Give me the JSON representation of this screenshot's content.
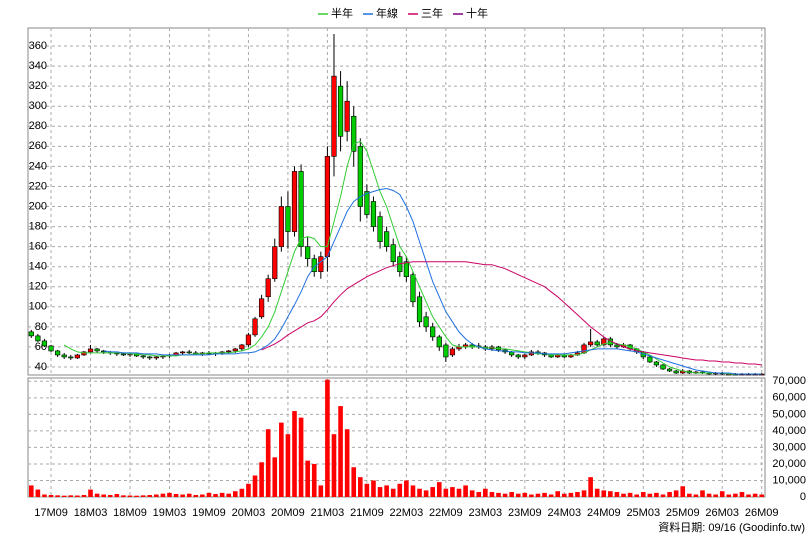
{
  "chart_data": {
    "type": "candlestick",
    "source": "資料日期: 09/16 (Goodinfo.tw)",
    "legend": "top",
    "grid": true,
    "up_color": "#ff0000",
    "down_color": "#00cc00",
    "categories": [
      null,
      null,
      null,
      "17M09",
      null,
      null,
      null,
      null,
      null,
      "18M03",
      null,
      null,
      null,
      null,
      null,
      "18M09",
      null,
      null,
      null,
      null,
      null,
      "19M03",
      null,
      null,
      null,
      null,
      null,
      "19M09",
      null,
      null,
      null,
      null,
      null,
      "20M03",
      null,
      null,
      null,
      null,
      null,
      "20M09",
      null,
      null,
      null,
      null,
      null,
      "21M03",
      null,
      null,
      null,
      null,
      null,
      "21M09",
      null,
      null,
      null,
      null,
      null,
      "22M03",
      null,
      null,
      null,
      null,
      null,
      "22M09",
      null,
      null,
      null,
      null,
      null,
      "23M03",
      null,
      null,
      null,
      null,
      null,
      "23M09",
      null,
      null,
      null,
      null,
      null,
      "24M03",
      null,
      null,
      null,
      null,
      null,
      "24M09",
      null,
      null,
      null,
      null,
      null,
      "25M03",
      null,
      null,
      null,
      null,
      null,
      "25M09",
      null,
      null,
      null,
      null,
      null,
      "26M03",
      null,
      null,
      null,
      null,
      null,
      "26M09"
    ],
    "ohlc": [
      [
        75,
        77,
        69,
        71
      ],
      [
        71,
        73,
        65,
        66
      ],
      [
        66,
        68,
        60,
        61
      ],
      [
        61,
        62,
        55,
        56
      ],
      [
        56,
        57,
        50,
        52
      ],
      [
        52,
        54,
        48,
        50
      ],
      [
        50,
        52,
        47,
        49
      ],
      [
        49,
        53,
        48,
        52
      ],
      [
        52,
        56,
        51,
        55
      ],
      [
        55,
        62,
        54,
        58
      ],
      [
        58,
        59,
        54,
        56
      ],
      [
        56,
        57,
        53,
        55
      ],
      [
        55,
        56,
        52,
        54
      ],
      [
        54,
        55,
        51,
        53
      ],
      [
        53,
        54,
        51,
        52
      ],
      [
        52,
        54,
        50,
        53
      ],
      [
        53,
        54,
        50,
        51
      ],
      [
        51,
        52,
        48,
        50
      ],
      [
        50,
        51,
        47,
        49
      ],
      [
        49,
        51,
        47,
        50
      ],
      [
        50,
        52,
        48,
        51
      ],
      [
        51,
        53,
        49,
        52
      ],
      [
        52,
        55,
        51,
        54
      ],
      [
        54,
        56,
        52,
        55
      ],
      [
        55,
        57,
        53,
        54
      ],
      [
        54,
        56,
        52,
        53
      ],
      [
        53,
        55,
        51,
        54
      ],
      [
        54,
        56,
        52,
        53
      ],
      [
        53,
        55,
        51,
        54
      ],
      [
        54,
        56,
        52,
        55
      ],
      [
        55,
        57,
        53,
        56
      ],
      [
        56,
        59,
        54,
        58
      ],
      [
        58,
        63,
        56,
        62
      ],
      [
        62,
        74,
        60,
        72
      ],
      [
        72,
        90,
        70,
        88
      ],
      [
        90,
        112,
        88,
        108
      ],
      [
        110,
        132,
        105,
        128
      ],
      [
        128,
        168,
        125,
        160
      ],
      [
        160,
        210,
        155,
        200
      ],
      [
        200,
        215,
        158,
        175
      ],
      [
        175,
        240,
        170,
        235
      ],
      [
        235,
        242,
        150,
        160
      ],
      [
        160,
        170,
        140,
        148
      ],
      [
        148,
        152,
        130,
        135
      ],
      [
        135,
        155,
        128,
        150
      ],
      [
        150,
        260,
        135,
        250
      ],
      [
        250,
        372,
        230,
        330
      ],
      [
        320,
        335,
        255,
        270
      ],
      [
        275,
        325,
        265,
        305
      ],
      [
        290,
        300,
        240,
        255
      ],
      [
        260,
        268,
        185,
        200
      ],
      [
        215,
        222,
        188,
        192
      ],
      [
        205,
        210,
        175,
        180
      ],
      [
        190,
        195,
        158,
        165
      ],
      [
        175,
        180,
        155,
        160
      ],
      [
        162,
        168,
        140,
        145
      ],
      [
        150,
        155,
        130,
        135
      ],
      [
        145,
        150,
        125,
        130
      ],
      [
        132,
        135,
        100,
        105
      ],
      [
        110,
        115,
        80,
        85
      ],
      [
        90,
        95,
        75,
        80
      ],
      [
        80,
        84,
        66,
        70
      ],
      [
        70,
        72,
        56,
        60
      ],
      [
        62,
        64,
        45,
        50
      ],
      [
        52,
        60,
        50,
        58
      ],
      [
        58,
        63,
        56,
        60
      ],
      [
        60,
        64,
        58,
        62
      ],
      [
        62,
        64,
        58,
        60
      ],
      [
        61,
        64,
        58,
        60
      ],
      [
        60,
        62,
        56,
        58
      ],
      [
        58,
        62,
        56,
        60
      ],
      [
        60,
        61,
        55,
        57
      ],
      [
        57,
        58,
        53,
        55
      ],
      [
        55,
        56,
        50,
        52
      ],
      [
        52,
        53,
        48,
        50
      ],
      [
        50,
        53,
        48,
        52
      ],
      [
        52,
        57,
        51,
        55
      ],
      [
        55,
        57,
        52,
        54
      ],
      [
        54,
        55,
        50,
        52
      ],
      [
        52,
        53,
        49,
        50
      ],
      [
        50,
        53,
        49,
        52
      ],
      [
        52,
        53,
        49,
        50
      ],
      [
        50,
        53,
        49,
        52
      ],
      [
        52,
        56,
        51,
        54
      ],
      [
        54,
        64,
        53,
        62
      ],
      [
        62,
        78,
        60,
        65
      ],
      [
        65,
        67,
        60,
        62
      ],
      [
        62,
        70,
        61,
        68
      ],
      [
        68,
        70,
        60,
        62
      ],
      [
        62,
        64,
        58,
        60
      ],
      [
        60,
        64,
        59,
        62
      ],
      [
        62,
        63,
        56,
        58
      ],
      [
        58,
        59,
        53,
        55
      ],
      [
        55,
        56,
        48,
        50
      ],
      [
        50,
        51,
        44,
        45
      ],
      [
        45,
        46,
        40,
        42
      ],
      [
        42,
        43,
        37,
        38
      ],
      [
        38,
        39,
        35,
        36
      ],
      [
        36,
        37,
        33,
        34
      ],
      [
        34,
        38,
        33,
        36
      ],
      [
        36,
        37,
        33,
        34
      ],
      [
        34,
        36,
        33,
        35
      ],
      [
        35,
        36,
        33,
        34
      ],
      [
        34,
        35,
        32,
        33
      ],
      [
        33,
        35,
        32,
        34
      ],
      [
        34,
        35,
        32,
        33
      ],
      [
        33,
        34,
        32,
        33
      ],
      [
        33,
        34,
        32,
        32
      ],
      [
        32,
        34,
        32,
        33
      ],
      [
        33,
        34,
        32,
        33
      ],
      [
        33,
        34,
        32,
        33
      ],
      [
        33,
        34,
        32,
        33
      ]
    ],
    "volume": {
      "color": "#ff0000",
      "axis": "y2",
      "values": [
        7000,
        4500,
        1500,
        1200,
        1000,
        800,
        1000,
        900,
        1200,
        4500,
        2000,
        1500,
        1200,
        1800,
        1000,
        900,
        800,
        1000,
        1200,
        1500,
        2000,
        2500,
        1800,
        1500,
        2000,
        1200,
        1500,
        2500,
        1800,
        2500,
        2000,
        3500,
        5000,
        8000,
        13000,
        21000,
        41000,
        24000,
        45000,
        38000,
        52000,
        48000,
        22000,
        20000,
        7000,
        71000,
        38000,
        55000,
        41000,
        18000,
        12000,
        8000,
        10000,
        6000,
        7000,
        5000,
        8000,
        10000,
        7000,
        5000,
        4000,
        6000,
        9000,
        5000,
        6000,
        5000,
        7000,
        4000,
        3000,
        5000,
        3000,
        2500,
        2000,
        3000,
        2000,
        2500,
        1500,
        2000,
        2500,
        1500,
        3500,
        2000,
        2500,
        3000,
        4000,
        12000,
        5000,
        4000,
        3500,
        3000,
        2000,
        2500,
        1500,
        3000,
        2000,
        2500,
        1500,
        3000,
        4000,
        6500,
        2000,
        1500,
        4000,
        2000,
        1500,
        3500,
        1500,
        2000,
        3000,
        1500,
        2000,
        1500
      ]
    },
    "series": [
      {
        "name": "半年",
        "color": "#33cc33",
        "values": [
          null,
          null,
          null,
          null,
          null,
          62,
          58,
          55,
          54,
          54,
          54,
          54,
          54,
          54,
          54,
          53,
          53,
          52,
          52,
          51,
          51,
          51,
          51,
          52,
          52,
          53,
          53,
          54,
          54,
          54,
          54,
          55,
          56,
          58,
          62,
          70,
          80,
          95,
          115,
          135,
          155,
          168,
          170,
          168,
          160,
          160,
          185,
          210,
          240,
          262,
          265,
          255,
          235,
          215,
          200,
          180,
          160,
          150,
          135,
          120,
          105,
          90,
          80,
          70,
          62,
          60,
          60,
          60,
          60,
          59,
          59,
          58,
          58,
          57,
          56,
          55,
          54,
          53,
          53,
          52,
          52,
          52,
          52,
          52,
          54,
          57,
          60,
          63,
          64,
          63,
          62,
          60,
          58,
          55,
          52,
          48,
          44,
          40,
          38,
          36,
          35,
          34,
          34,
          34,
          34,
          34,
          33,
          33,
          33,
          33,
          33,
          33
        ]
      },
      {
        "name": "年線",
        "color": "#1f6fe0",
        "values": [
          null,
          null,
          null,
          null,
          null,
          null,
          null,
          null,
          null,
          null,
          null,
          56,
          55,
          55,
          54,
          54,
          54,
          53,
          53,
          53,
          52,
          52,
          52,
          52,
          52,
          52,
          52,
          52,
          53,
          53,
          53,
          53,
          54,
          54,
          55,
          58,
          62,
          68,
          78,
          90,
          102,
          115,
          130,
          140,
          145,
          150,
          165,
          180,
          195,
          205,
          210,
          213,
          215,
          217,
          218,
          216,
          212,
          200,
          185,
          165,
          145,
          125,
          110,
          95,
          85,
          75,
          68,
          63,
          60,
          58,
          57,
          56,
          56,
          55,
          55,
          54,
          54,
          54,
          53,
          53,
          53,
          53,
          54,
          55,
          56,
          57,
          58,
          58,
          58,
          58,
          57,
          56,
          55,
          53,
          51,
          49,
          47,
          45,
          43,
          41,
          39,
          37,
          36,
          35,
          34,
          34,
          34,
          33,
          33,
          33,
          33,
          33
        ]
      },
      {
        "name": "三年",
        "color": "#cc0066",
        "values": [
          null,
          null,
          null,
          null,
          null,
          null,
          null,
          null,
          null,
          null,
          null,
          null,
          null,
          null,
          null,
          null,
          null,
          null,
          null,
          null,
          null,
          null,
          null,
          null,
          null,
          null,
          null,
          null,
          null,
          null,
          null,
          null,
          null,
          null,
          null,
          57,
          60,
          63,
          67,
          72,
          76,
          80,
          84,
          86,
          90,
          97,
          105,
          112,
          118,
          122,
          126,
          130,
          133,
          136,
          139,
          141,
          143,
          144,
          145,
          145,
          145,
          145,
          145,
          145,
          145,
          145,
          145,
          144,
          143,
          142,
          142,
          140,
          138,
          135,
          132,
          129,
          126,
          123,
          120,
          115,
          110,
          104,
          98,
          92,
          86,
          80,
          75,
          70,
          66,
          63,
          60,
          58,
          56,
          55,
          54,
          53,
          52,
          51,
          50,
          49,
          48,
          47,
          47,
          46,
          46,
          45,
          45,
          44,
          44,
          43,
          43,
          42
        ]
      },
      {
        "name": "十年",
        "color": "#800080",
        "values": [
          null,
          null,
          null,
          null,
          null,
          null,
          null,
          null,
          null,
          null,
          null,
          null,
          null,
          null,
          null,
          null,
          null,
          null,
          null,
          null,
          null,
          null,
          null,
          null,
          null,
          null,
          null,
          null,
          null,
          null,
          null,
          null,
          null,
          null,
          null,
          null,
          null,
          null,
          null,
          null,
          null,
          null,
          null,
          null,
          null,
          null,
          null,
          null,
          null,
          null,
          null,
          null,
          null,
          null,
          null,
          null,
          null,
          null,
          null,
          null,
          null,
          null,
          null,
          null,
          null,
          null,
          null,
          null,
          null,
          null,
          null,
          null,
          null,
          null,
          null,
          null,
          null,
          null,
          null,
          null,
          null,
          null,
          null,
          null,
          null,
          null,
          null,
          null,
          null,
          null,
          null,
          null,
          null,
          null,
          null,
          null,
          null,
          null,
          null,
          null,
          null,
          null,
          null,
          null,
          null,
          null,
          null,
          null,
          null,
          null,
          null,
          null
        ]
      }
    ],
    "ylim": [
      32,
      378
    ],
    "yticks": [
      40,
      60,
      80,
      100,
      120,
      140,
      160,
      180,
      200,
      220,
      240,
      260,
      280,
      300,
      320,
      340,
      360
    ],
    "y2lim": [
      0,
      72000
    ],
    "y2ticks": [
      {
        "value": 0,
        "label": "0"
      },
      {
        "value": 10000,
        "label": "10,000"
      },
      {
        "value": 20000,
        "label": "20,000"
      },
      {
        "value": 30000,
        "label": "30,000"
      },
      {
        "value": 40000,
        "label": "40,000"
      },
      {
        "value": 50000,
        "label": "50,000"
      },
      {
        "value": 60000,
        "label": "60,000"
      },
      {
        "value": 70000,
        "label": "70,000"
      }
    ]
  }
}
